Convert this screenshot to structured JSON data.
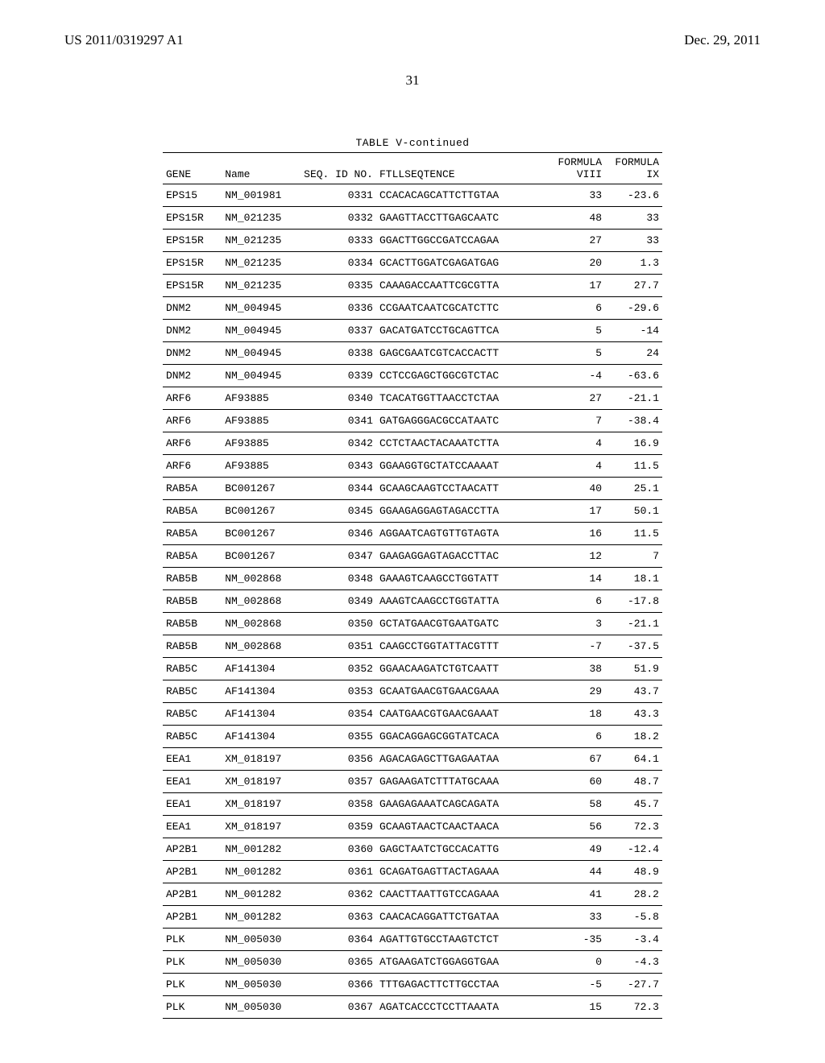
{
  "header": {
    "left": "US 2011/0319297 A1",
    "right": "Dec. 29, 2011"
  },
  "page_number": "31",
  "table": {
    "caption": "TABLE V-continued",
    "columns": {
      "gene": "GENE",
      "name": "Name",
      "seqid": "SEQ. ID NO.",
      "sequence": "FTLLSEQTENCE",
      "formula_viii_top": "FORMULA",
      "formula_viii_bot": "VIII",
      "formula_ix_top": "FORMULA",
      "formula_ix_bot": "IX"
    },
    "rows": [
      {
        "gene": "EPS15",
        "name": "NM_001981",
        "seqid": "0331",
        "seq": "CCACACAGCATTCTTGTAA",
        "v8": "33",
        "v9": "-23.6"
      },
      {
        "gene": "EPS15R",
        "name": "NM_021235",
        "seqid": "0332",
        "seq": "GAAGTTACCTTGAGCAATC",
        "v8": "48",
        "v9": "33"
      },
      {
        "gene": "EPS15R",
        "name": "NM_021235",
        "seqid": "0333",
        "seq": "GGACTTGGCCGATCCAGAA",
        "v8": "27",
        "v9": "33"
      },
      {
        "gene": "EPS15R",
        "name": "NM_021235",
        "seqid": "0334",
        "seq": "GCACTTGGATCGAGATGAG",
        "v8": "20",
        "v9": "1.3"
      },
      {
        "gene": "EPS15R",
        "name": "NM_021235",
        "seqid": "0335",
        "seq": "CAAAGACCAATTCGCGTTA",
        "v8": "17",
        "v9": "27.7"
      },
      {
        "gene": "DNM2",
        "name": "NM_004945",
        "seqid": "0336",
        "seq": "CCGAATCAATCGCATCTTC",
        "v8": "6",
        "v9": "-29.6"
      },
      {
        "gene": "DNM2",
        "name": "NM_004945",
        "seqid": "0337",
        "seq": "GACATGATCCTGCAGTTCA",
        "v8": "5",
        "v9": "-14"
      },
      {
        "gene": "DNM2",
        "name": "NM_004945",
        "seqid": "0338",
        "seq": "GAGCGAATCGTCACCACTT",
        "v8": "5",
        "v9": "24"
      },
      {
        "gene": "DNM2",
        "name": "NM_004945",
        "seqid": "0339",
        "seq": "CCTCCGAGCTGGCGTCTAC",
        "v8": "-4",
        "v9": "-63.6"
      },
      {
        "gene": "ARF6",
        "name": "AF93885",
        "seqid": "0340",
        "seq": "TCACATGGTTAACCTCTAA",
        "v8": "27",
        "v9": "-21.1"
      },
      {
        "gene": "ARF6",
        "name": "AF93885",
        "seqid": "0341",
        "seq": "GATGAGGGACGCCATAATC",
        "v8": "7",
        "v9": "-38.4"
      },
      {
        "gene": "ARF6",
        "name": "AF93885",
        "seqid": "0342",
        "seq": "CCTCTAACTACAAATCTTA",
        "v8": "4",
        "v9": "16.9"
      },
      {
        "gene": "ARF6",
        "name": "AF93885",
        "seqid": "0343",
        "seq": "GGAAGGTGCTATCCAAAAT",
        "v8": "4",
        "v9": "11.5"
      },
      {
        "gene": "RAB5A",
        "name": "BC001267",
        "seqid": "0344",
        "seq": "GCAAGCAAGTCCTAACATT",
        "v8": "40",
        "v9": "25.1"
      },
      {
        "gene": "RAB5A",
        "name": "BC001267",
        "seqid": "0345",
        "seq": "GGAAGAGGAGTAGACCTTA",
        "v8": "17",
        "v9": "50.1"
      },
      {
        "gene": "RAB5A",
        "name": "BC001267",
        "seqid": "0346",
        "seq": "AGGAATCAGTGTTGTAGTA",
        "v8": "16",
        "v9": "11.5"
      },
      {
        "gene": "RAB5A",
        "name": "BC001267",
        "seqid": "0347",
        "seq": "GAAGAGGAGTAGACCTTAC",
        "v8": "12",
        "v9": "7"
      },
      {
        "gene": "RAB5B",
        "name": "NM_002868",
        "seqid": "0348",
        "seq": "GAAAGTCAAGCCTGGTATT",
        "v8": "14",
        "v9": "18.1"
      },
      {
        "gene": "RAB5B",
        "name": "NM_002868",
        "seqid": "0349",
        "seq": "AAAGTCAAGCCTGGTATTA",
        "v8": "6",
        "v9": "-17.8"
      },
      {
        "gene": "RAB5B",
        "name": "NM_002868",
        "seqid": "0350",
        "seq": "GCTATGAACGTGAATGATC",
        "v8": "3",
        "v9": "-21.1"
      },
      {
        "gene": "RAB5B",
        "name": "NM_002868",
        "seqid": "0351",
        "seq": "CAAGCCTGGTATTACGTTT",
        "v8": "-7",
        "v9": "-37.5"
      },
      {
        "gene": "RAB5C",
        "name": "AF141304",
        "seqid": "0352",
        "seq": "GGAACAAGATCTGTCAATT",
        "v8": "38",
        "v9": "51.9"
      },
      {
        "gene": "RAB5C",
        "name": "AF141304",
        "seqid": "0353",
        "seq": "GCAATGAACGTGAACGAAA",
        "v8": "29",
        "v9": "43.7"
      },
      {
        "gene": "RAB5C",
        "name": "AF141304",
        "seqid": "0354",
        "seq": "CAATGAACGTGAACGAAAT",
        "v8": "18",
        "v9": "43.3"
      },
      {
        "gene": "RAB5C",
        "name": "AF141304",
        "seqid": "0355",
        "seq": "GGACAGGAGCGGTATCACA",
        "v8": "6",
        "v9": "18.2"
      },
      {
        "gene": "EEA1",
        "name": "XM_018197",
        "seqid": "0356",
        "seq": "AGACAGAGCTTGAGAATAA",
        "v8": "67",
        "v9": "64.1"
      },
      {
        "gene": "EEA1",
        "name": "XM_018197",
        "seqid": "0357",
        "seq": "GAGAAGATCTTTATGCAAA",
        "v8": "60",
        "v9": "48.7"
      },
      {
        "gene": "EEA1",
        "name": "XM_018197",
        "seqid": "0358",
        "seq": "GAAGAGAAATCAGCAGATA",
        "v8": "58",
        "v9": "45.7"
      },
      {
        "gene": "EEA1",
        "name": "XM_018197",
        "seqid": "0359",
        "seq": "GCAAGTAACTCAACTAACA",
        "v8": "56",
        "v9": "72.3"
      },
      {
        "gene": "AP2B1",
        "name": "NM_001282",
        "seqid": "0360",
        "seq": "GAGCTAATCTGCCACATTG",
        "v8": "49",
        "v9": "-12.4"
      },
      {
        "gene": "AP2B1",
        "name": "NM_001282",
        "seqid": "0361",
        "seq": "GCAGATGAGTTACTAGAAA",
        "v8": "44",
        "v9": "48.9"
      },
      {
        "gene": "AP2B1",
        "name": "NM_001282",
        "seqid": "0362",
        "seq": "CAACTTAATTGTCCAGAAA",
        "v8": "41",
        "v9": "28.2"
      },
      {
        "gene": "AP2B1",
        "name": "NM_001282",
        "seqid": "0363",
        "seq": "CAACACAGGATTCTGATAA",
        "v8": "33",
        "v9": "-5.8"
      },
      {
        "gene": "PLK",
        "name": "NM_005030",
        "seqid": "0364",
        "seq": "AGATTGTGCCTAAGTCTCT",
        "v8": "-35",
        "v9": "-3.4"
      },
      {
        "gene": "PLK",
        "name": "NM_005030",
        "seqid": "0365",
        "seq": "ATGAAGATCTGGAGGTGAA",
        "v8": "0",
        "v9": "-4.3"
      },
      {
        "gene": "PLK",
        "name": "NM_005030",
        "seqid": "0366",
        "seq": "TTTGAGACTTCTTGCCTAA",
        "v8": "-5",
        "v9": "-27.7"
      },
      {
        "gene": "PLK",
        "name": "NM_005030",
        "seqid": "0367",
        "seq": "AGATCACCCTCCTTAAATA",
        "v8": "15",
        "v9": "72.3"
      }
    ]
  }
}
